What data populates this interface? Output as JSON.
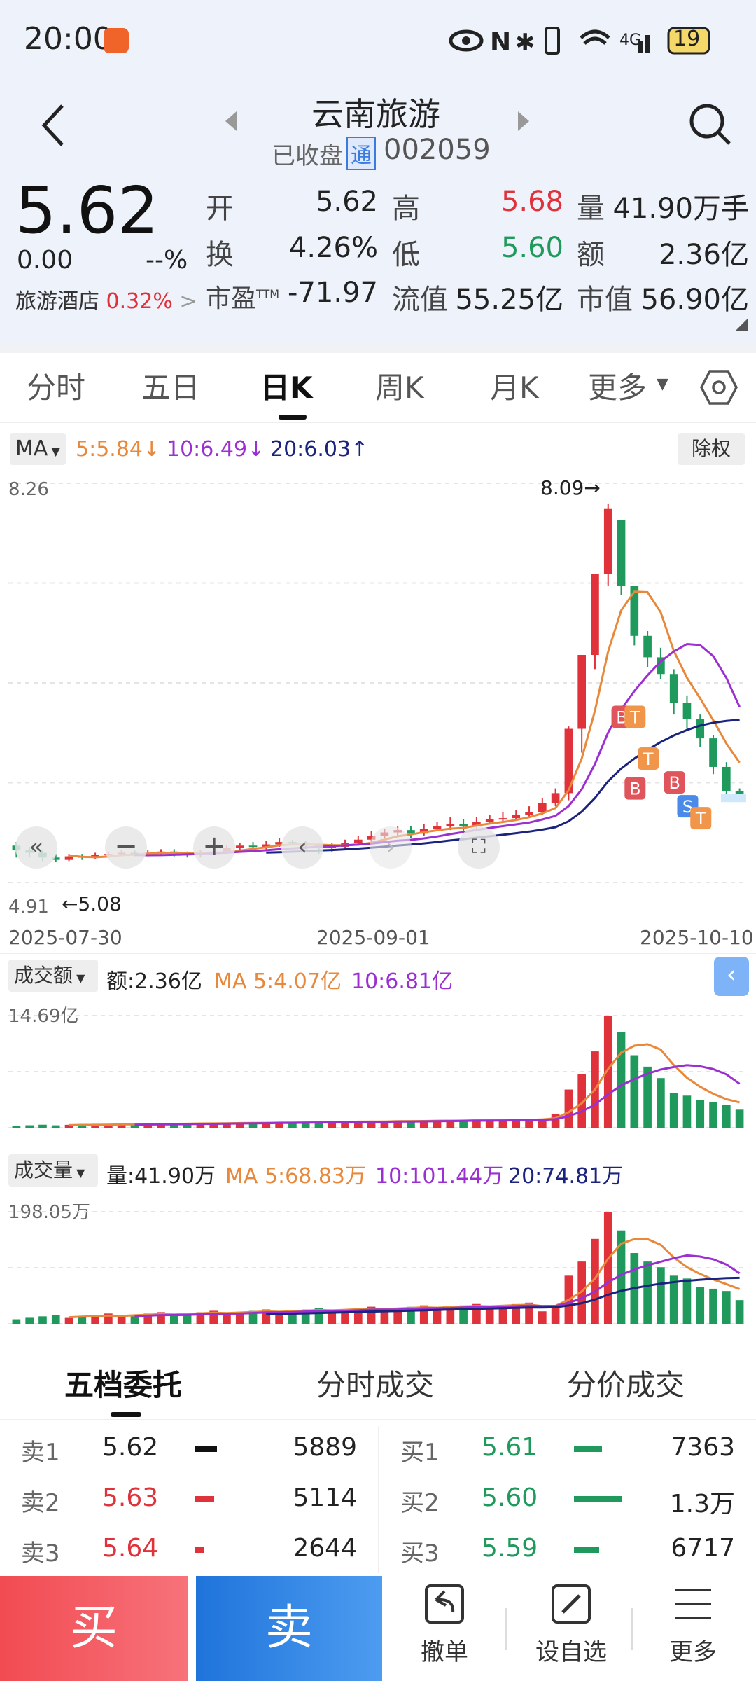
{
  "status": {
    "time": "20:00",
    "battery": "19"
  },
  "header": {
    "title": "云南旅游",
    "status": "已收盘",
    "tong": "通",
    "code": "002059"
  },
  "quote": {
    "price": "5.62",
    "change": "0.00",
    "change_pct": "--%",
    "sector": "旅游酒店",
    "sector_pct": "0.32%",
    "open_label": "开",
    "open": "5.62",
    "high_label": "高",
    "high": "5.68",
    "vol_label": "量",
    "vol": "41.90万手",
    "turn_label": "换",
    "turn": "4.26%",
    "low_label": "低",
    "low": "5.60",
    "amt_label": "额",
    "amt": "2.36亿",
    "pe_label": "市盈",
    "pe_sup": "TTM",
    "pe": "-71.97",
    "float_label": "流值",
    "float_cap": "55.25亿",
    "cap_label": "市值",
    "cap": "56.90亿"
  },
  "tabs": [
    "分时",
    "五日",
    "日K",
    "周K",
    "月K",
    "更多"
  ],
  "indicator": {
    "ma": "MA",
    "ma5": "5:5.84",
    "ma10": "10:6.49",
    "ma20": "20:6.03",
    "adj": "除权"
  },
  "kchart": {
    "ymax": "8.26",
    "ymin": "4.91",
    "hi_tag": "8.09→",
    "lo_tag": "←5.08",
    "d1": "2025-07-30",
    "d2": "2025-09-01",
    "d3": "2025-10-10"
  },
  "amount": {
    "sel": "成交额",
    "cur": "额:2.36亿",
    "ma5": "MA 5:4.07亿",
    "ma10": "10:6.81亿",
    "max": "14.69亿"
  },
  "volume": {
    "sel": "成交量",
    "cur": "量:41.90万",
    "ma5": "MA 5:68.83万",
    "ma10": "10:101.44万",
    "ma20": "20:74.81万",
    "max": "198.05万"
  },
  "book_tabs": [
    "五档委托",
    "分时成交",
    "分价成交"
  ],
  "asks": [
    {
      "l": "卖1",
      "p": "5.62",
      "v": "5889"
    },
    {
      "l": "卖2",
      "p": "5.63",
      "v": "5114"
    },
    {
      "l": "卖3",
      "p": "5.64",
      "v": "2644"
    }
  ],
  "bids": [
    {
      "l": "买1",
      "p": "5.61",
      "v": "7363"
    },
    {
      "l": "买2",
      "p": "5.60",
      "v": "1.3万"
    },
    {
      "l": "买3",
      "p": "5.59",
      "v": "6717"
    }
  ],
  "bottom": {
    "buy": "买",
    "sell": "卖",
    "cancel": "撤单",
    "watch": "设自选",
    "more": "更多"
  },
  "colors": {
    "up": "#e0323a",
    "down": "#1f9a5c",
    "ma5": "#e8883a",
    "ma10": "#9b2fd1",
    "ma20": "#1a237e"
  }
}
